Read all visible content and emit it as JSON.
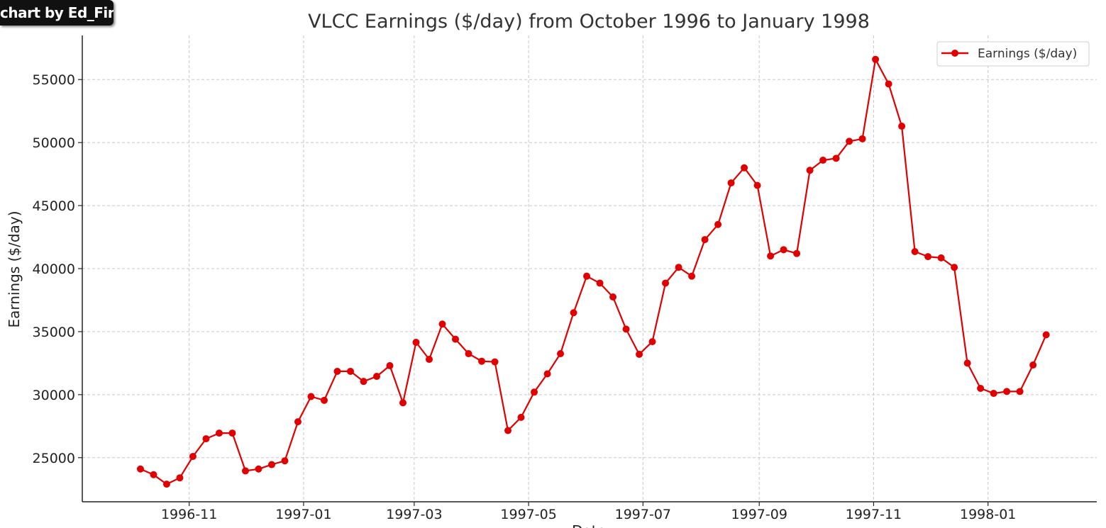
{
  "watermark": "chart by Ed_Fin",
  "chart_data": {
    "type": "line",
    "title": "VLCC Earnings ($/day) from October 1996 to January 1998",
    "xlabel": "Date",
    "ylabel": "Earnings ($/day)",
    "x_axis_type": "date",
    "xlim": [
      "1996-09-05",
      "1998-02-28"
    ],
    "ylim": [
      21500,
      58500
    ],
    "x_ticks": [
      "1996-11-01",
      "1997-01-01",
      "1997-03-01",
      "1997-05-01",
      "1997-07-01",
      "1997-09-01",
      "1997-11-01",
      "1998-01-01"
    ],
    "x_tick_labels": [
      "1996-11",
      "1997-01",
      "1997-03",
      "1997-05",
      "1997-07",
      "1997-09",
      "1997-11",
      "1998-01"
    ],
    "y_ticks": [
      25000,
      30000,
      35000,
      40000,
      45000,
      50000,
      55000
    ],
    "grid": true,
    "legend_position": "top-right",
    "series": [
      {
        "name": "Earnings ($/day)",
        "color": "#e00000",
        "marker": "circle",
        "x": [
          "1996-10-06",
          "1996-10-13",
          "1996-10-20",
          "1996-10-27",
          "1996-11-03",
          "1996-11-10",
          "1996-11-17",
          "1996-11-24",
          "1996-12-01",
          "1996-12-08",
          "1996-12-15",
          "1996-12-22",
          "1996-12-29",
          "1997-01-05",
          "1997-01-12",
          "1997-01-19",
          "1997-01-26",
          "1997-02-02",
          "1997-02-09",
          "1997-02-16",
          "1997-02-23",
          "1997-03-02",
          "1997-03-09",
          "1997-03-16",
          "1997-03-23",
          "1997-03-30",
          "1997-04-06",
          "1997-04-13",
          "1997-04-20",
          "1997-04-27",
          "1997-05-04",
          "1997-05-11",
          "1997-05-18",
          "1997-05-25",
          "1997-06-01",
          "1997-06-08",
          "1997-06-15",
          "1997-06-22",
          "1997-06-29",
          "1997-07-06",
          "1997-07-13",
          "1997-07-20",
          "1997-07-27",
          "1997-08-03",
          "1997-08-10",
          "1997-08-17",
          "1997-08-24",
          "1997-08-31",
          "1997-09-07",
          "1997-09-14",
          "1997-09-21",
          "1997-09-28",
          "1997-10-05",
          "1997-10-12",
          "1997-10-19",
          "1997-10-26",
          "1997-11-02",
          "1997-11-09",
          "1997-11-16",
          "1997-11-23",
          "1997-11-30",
          "1997-12-07",
          "1997-12-14",
          "1997-12-21",
          "1997-12-28",
          "1998-01-04",
          "1998-01-11",
          "1998-01-18",
          "1998-01-25",
          "1998-02-01"
        ],
        "values": [
          24100,
          23650,
          22900,
          23400,
          25100,
          26500,
          26950,
          26950,
          23950,
          24100,
          24450,
          24750,
          27850,
          29850,
          29550,
          31850,
          31850,
          31050,
          31450,
          32300,
          29350,
          34150,
          32800,
          35600,
          34400,
          33250,
          32650,
          32600,
          27150,
          28200,
          30200,
          31650,
          33250,
          36500,
          39400,
          38850,
          37750,
          35200,
          33200,
          34200,
          38850,
          40100,
          39400,
          42300,
          43500,
          46800,
          48000,
          46600,
          41000,
          41500,
          41200,
          47800,
          48600,
          48750,
          50100,
          50300,
          56600,
          54650,
          51300,
          41350,
          40950,
          40850,
          40100,
          32500,
          30500,
          30100,
          30250,
          30250,
          32350,
          34750
        ]
      }
    ]
  }
}
